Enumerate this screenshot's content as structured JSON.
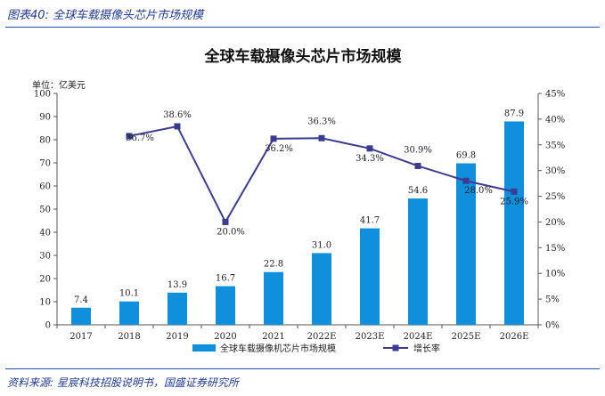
{
  "figure": {
    "caption": "图表40: 全球车载摄像头芯片市场规模",
    "source": "资料来源: 星宸科技招股说明书，国盛证券研究所"
  },
  "chart_data": {
    "type": "bar",
    "title": "全球车载摄像头芯片市场规模",
    "y_unit_label": "单位：亿美元",
    "categories": [
      "2017",
      "2018",
      "2019",
      "2020",
      "2021",
      "2022E",
      "2023E",
      "2024E",
      "2025E",
      "2026E"
    ],
    "series": [
      {
        "name": "全球车载摄像机芯片市场规模",
        "type": "bar",
        "axis": "left",
        "color": "#0f8fdc",
        "values": [
          7.4,
          10.1,
          13.9,
          16.7,
          22.8,
          31.0,
          41.7,
          54.6,
          69.8,
          87.9
        ],
        "labels": [
          "7.4",
          "10.1",
          "13.9",
          "16.7",
          "22.8",
          "31.0",
          "41.7",
          "54.6",
          "69.8",
          "87.9"
        ]
      },
      {
        "name": "增长率",
        "type": "line",
        "axis": "right",
        "color": "#3b3b8f",
        "values": [
          null,
          36.7,
          38.6,
          20.0,
          36.2,
          36.3,
          34.3,
          30.9,
          28.0,
          25.9
        ],
        "labels": [
          "",
          "36.7%",
          "38.6%",
          "20.0%",
          "36.2%",
          "36.3%",
          "34.3%",
          "30.9%",
          "28.0%",
          "25.9%"
        ]
      }
    ],
    "y_left": {
      "lim": [
        0,
        100
      ],
      "ticks": [
        "0",
        "10",
        "20",
        "30",
        "40",
        "50",
        "60",
        "70",
        "80",
        "90",
        "100"
      ]
    },
    "y_right": {
      "lim": [
        0,
        45
      ],
      "ticks": [
        "0%",
        "5%",
        "10%",
        "15%",
        "20%",
        "25%",
        "30%",
        "35%",
        "40%",
        "45%"
      ]
    },
    "grid": false,
    "legend_position": "bottom"
  }
}
